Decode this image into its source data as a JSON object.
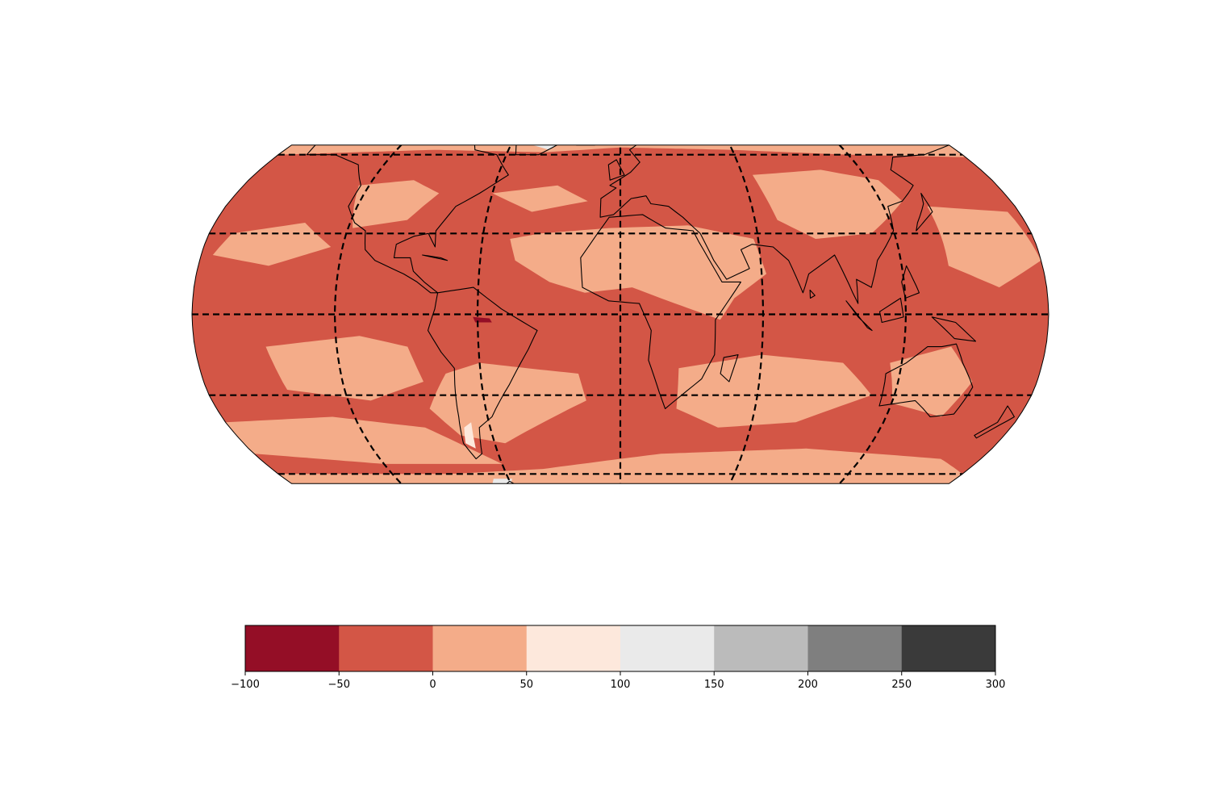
{
  "map": {
    "projection": "Robinson",
    "extent": "global",
    "central_longitude": 0,
    "gridlines": {
      "style": "dashed",
      "color": "#000000",
      "meridians": [
        -120,
        -60,
        0,
        60,
        120
      ],
      "parallels": [
        -60,
        -30,
        0,
        30,
        60
      ]
    },
    "coastlines": true,
    "field_colors": {
      "below_minus_50": "#940e26",
      "minus_50_to_0": "#d35646",
      "0_to_50": "#f4ac89",
      "50_to_100": "#fde8dc",
      "100_to_150": "#eaeaea"
    }
  },
  "colorbar": {
    "orientation": "horizontal",
    "placement": "bottom",
    "boundaries": [
      -100,
      -50,
      0,
      50,
      100,
      150,
      200,
      250,
      300
    ],
    "colors": [
      "#940e26",
      "#d35646",
      "#f4ac89",
      "#fde8dc",
      "#eaeaea",
      "#bbbbbb",
      "#7f7f7f",
      "#3a3a3a"
    ],
    "tick_labels": [
      "−100",
      "−50",
      "0",
      "50",
      "100",
      "150",
      "200",
      "250",
      "300"
    ]
  }
}
